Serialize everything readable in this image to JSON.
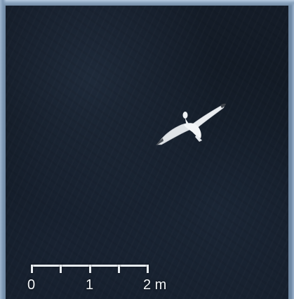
{
  "scale_bar": {
    "labels": [
      "0",
      "1",
      "2 m"
    ],
    "color": "#e6ebf0"
  },
  "subject": "gull-icon",
  "colors": {
    "water": "#141c28",
    "border": "#8aa3bd",
    "gull": "#e9ecef"
  }
}
